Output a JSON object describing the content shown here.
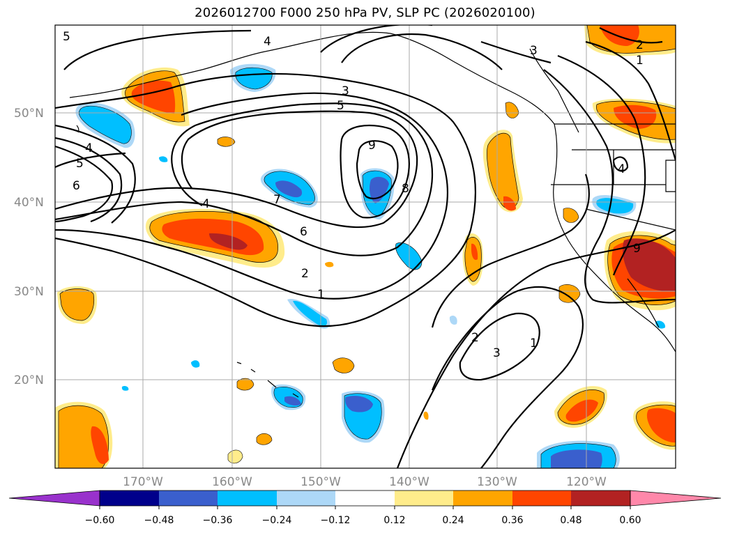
{
  "title": "2026012700 F000 250 hPa PV, SLP PC (2026020100)",
  "colors": {
    "neg_060": "#9932cc",
    "neg_048": "#00008b",
    "neg_036": "#3a5fcd",
    "neg_024": "#00bfff",
    "neg_012": "#add8f7",
    "zero": "#ffffff",
    "pos_012": "#ffec8b",
    "pos_024": "#ffa500",
    "pos_036": "#ff4500",
    "pos_048": "#b22222",
    "pos_060": "#ff88aa"
  },
  "lat_labels": [
    "50°N",
    "40°N",
    "30°N",
    "20°N"
  ],
  "lon_labels": [
    "170°W",
    "160°W",
    "150°W",
    "140°W",
    "130°W",
    "120°W"
  ],
  "colorbar": {
    "ticks": [
      "−0.60",
      "−0.48",
      "−0.36",
      "−0.24",
      "−0.12",
      "0.12",
      "0.24",
      "0.36",
      "0.48",
      "0.60"
    ]
  },
  "contour_labels": [
    "3",
    "5",
    "4",
    "5",
    "6",
    "9",
    "8",
    "7",
    "4",
    "6",
    "2",
    "1",
    "2",
    "3",
    "1",
    "4",
    "3",
    "2",
    "1",
    "9",
    "5",
    "4"
  ]
}
